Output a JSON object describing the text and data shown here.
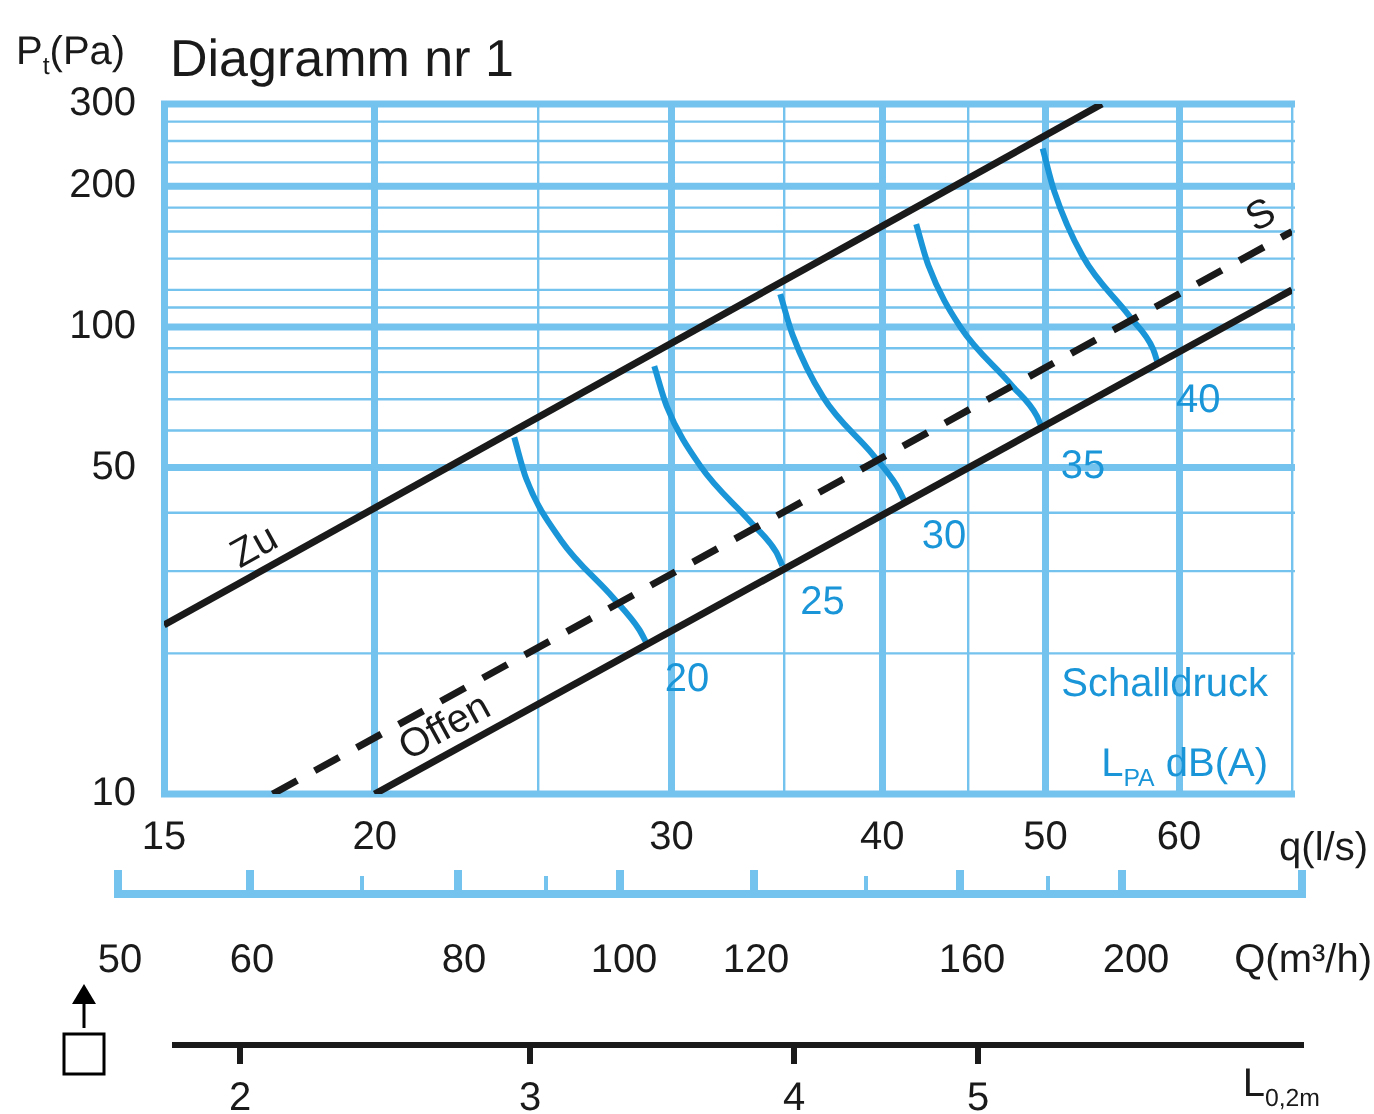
{
  "chart_data": {
    "type": "line",
    "title": "Diagramm nr 1",
    "ylabel": "P$_{t}$(Pa)",
    "xlabel": "q(l/s)",
    "log": "xy",
    "grid": true,
    "legend": false,
    "marker": "none",
    "xlim": [
      15,
      70
    ],
    "xticks": [
      15,
      20,
      {
        "value": 25,
        "label": null
      },
      30,
      {
        "value": 35,
        "label": null
      },
      40,
      {
        "value": 45,
        "label": null
      },
      50,
      60,
      {
        "value": 70,
        "label": null
      }
    ],
    "ylim": [
      10,
      300
    ],
    "yticks": [
      10,
      {
        "value": 20,
        "label": null
      },
      {
        "value": 30,
        "label": null
      },
      {
        "value": 40,
        "label": null
      },
      50,
      {
        "value": 60,
        "label": null
      },
      {
        "value": 70,
        "label": null
      },
      {
        "value": 80,
        "label": null
      },
      {
        "value": 90,
        "label": null
      },
      100,
      {
        "value": 110,
        "label": null
      },
      {
        "value": 120,
        "label": null
      },
      {
        "value": 140,
        "label": null
      },
      {
        "value": 160,
        "label": null
      },
      {
        "value": 180,
        "label": null
      },
      200,
      {
        "value": 225,
        "label": null
      },
      {
        "value": 250,
        "label": null
      },
      {
        "value": 275,
        "label": null
      },
      300
    ],
    "annotations": [
      "Schalldruck",
      "L$_{PA}$ dB(A)",
      "50",
      "60",
      "80",
      "100",
      "120",
      "160",
      "200",
      "Q(m³/h)",
      "2",
      "3",
      "4",
      "5",
      "L$_{0,2m}$"
    ],
    "series": [
      {
        "name": "Zu",
        "color": "#1a1a1a",
        "x": [
          15,
          54
        ],
        "values": [
          23,
          300
        ]
      },
      {
        "name": "S",
        "color": "#1a1a1a",
        "line_style": "dashed",
        "x": [
          17.4,
          70
        ],
        "values": [
          10,
          160
        ]
      },
      {
        "name": "Offen",
        "color": "#1a1a1a",
        "x": [
          20,
          70
        ],
        "values": [
          10,
          120
        ]
      },
      {
        "name": "20",
        "color": "#1a96d8",
        "x": [
          24.2,
          24.6,
          25.8,
          27.7,
          28.7,
          29.0
        ],
        "values": [
          58,
          47.3,
          34.9,
          26.3,
          22.5,
          21
        ]
      },
      {
        "name": "25",
        "color": "#1a96d8",
        "x": [
          29.3,
          29.8,
          31.2,
          33.4,
          34.6,
          34.9
        ],
        "values": [
          82.4,
          67.7,
          50.4,
          38.3,
          33.0,
          30.8
        ]
      },
      {
        "name": "30",
        "color": "#1a96d8",
        "x": [
          34.8,
          35.4,
          36.9,
          39.5,
          40.8,
          41.2
        ],
        "values": [
          117.5,
          95.9,
          70.7,
          53.2,
          45.7,
          42.6
        ]
      },
      {
        "name": "35",
        "color": "#1a96d8",
        "x": [
          41.9,
          42.6,
          44.5,
          47.7,
          49.4,
          49.8
        ],
        "values": [
          166,
          135.5,
          100,
          75.2,
          64.5,
          60.1
        ]
      },
      {
        "name": "40",
        "color": "#1a96d8",
        "x": [
          49.8,
          50.6,
          52.6,
          56.1,
          57.9,
          58.3
        ],
        "values": [
          241,
          194.8,
          141.6,
          105.1,
          89.7,
          83.2
        ]
      }
    ]
  }
}
